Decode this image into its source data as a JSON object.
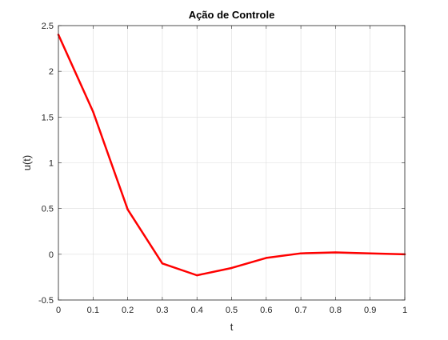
{
  "chart_data": {
    "type": "line",
    "title": "Ação de Controle",
    "xlabel": "t",
    "ylabel": "u(t)",
    "xlim": [
      0,
      1
    ],
    "ylim": [
      -0.5,
      2.5
    ],
    "xticks": [
      0,
      0.1,
      0.2,
      0.3,
      0.4,
      0.5,
      0.6,
      0.7,
      0.8,
      0.9,
      1
    ],
    "xtick_labels": [
      "0",
      "0.1",
      "0.2",
      "0.3",
      "0.4",
      "0.5",
      "0.6",
      "0.7",
      "0.8",
      "0.9",
      "1"
    ],
    "yticks": [
      -0.5,
      0,
      0.5,
      1,
      1.5,
      2,
      2.5
    ],
    "ytick_labels": [
      "-0.5",
      "0",
      "0.5",
      "1",
      "1.5",
      "2",
      "2.5"
    ],
    "grid": true,
    "series": [
      {
        "name": "u(t)",
        "color": "#ff0000",
        "x": [
          0,
          0.1,
          0.2,
          0.3,
          0.4,
          0.5,
          0.6,
          0.7,
          0.8,
          0.9,
          1.0
        ],
        "y": [
          2.4,
          1.56,
          0.49,
          -0.1,
          -0.23,
          -0.15,
          -0.04,
          0.01,
          0.02,
          0.01,
          0.0
        ]
      }
    ]
  }
}
